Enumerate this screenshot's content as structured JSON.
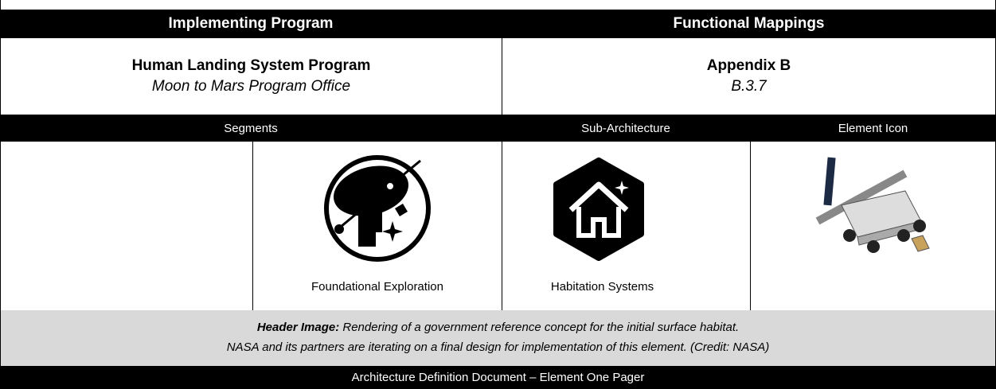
{
  "header": {
    "left_title": "Implementing Program",
    "right_title": "Functional Mappings"
  },
  "program": {
    "name": "Human Landing System Program",
    "office": "Moon to Mars Program Office"
  },
  "mapping": {
    "name": "Appendix B",
    "section": "B.3.7"
  },
  "columns": {
    "segments": "Segments",
    "sub_architecture": "Sub-Architecture",
    "element_icon": "Element Icon"
  },
  "cells": {
    "segment": "Foundational Exploration",
    "sub_architecture": "Habitation Systems"
  },
  "caption": {
    "label": "Header Image:",
    "line1": "Rendering of a government reference concept for the initial surface habitat.",
    "line2": "NASA and its partners are iterating on a final design for implementation of this element. (Credit: NASA)"
  },
  "footer": {
    "text": "Architecture Definition Document – Element One Pager"
  }
}
